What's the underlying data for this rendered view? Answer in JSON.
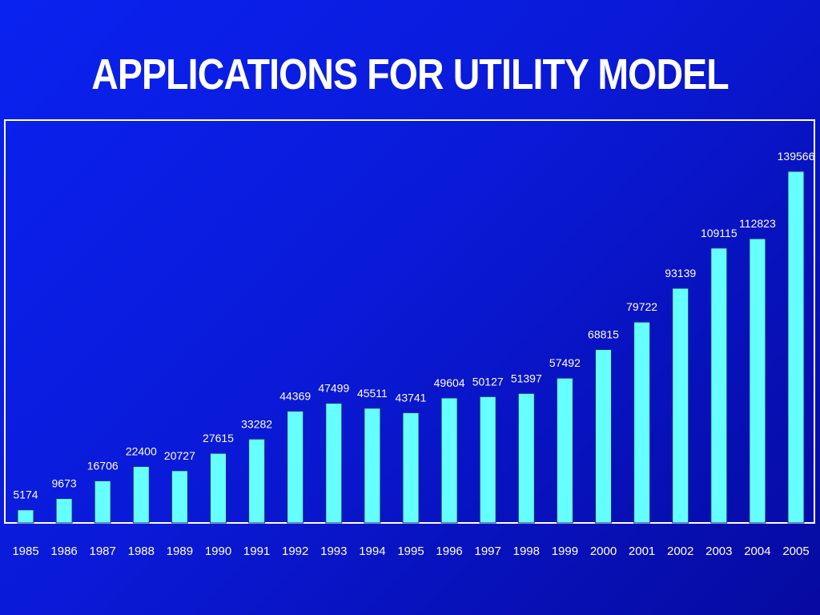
{
  "title": "APPLICATIONS FOR UTILITY MODEL",
  "colors": {
    "background": "#0a1ad8",
    "bar": "#66ffff",
    "frame": "#ffffff",
    "text": "#ffffff"
  },
  "chart_data": {
    "type": "bar",
    "title": "APPLICATIONS FOR UTILITY MODEL",
    "xlabel": "",
    "ylabel": "",
    "ylim": [
      0,
      139566
    ],
    "grid": false,
    "legend": "none",
    "categories": [
      "1985",
      "1986",
      "1987",
      "1988",
      "1989",
      "1990",
      "1991",
      "1992",
      "1993",
      "1994",
      "1995",
      "1996",
      "1997",
      "1998",
      "1999",
      "2000",
      "2001",
      "2002",
      "2003",
      "2004",
      "2005"
    ],
    "values": [
      5174,
      9673,
      16706,
      22400,
      20727,
      27615,
      33282,
      44369,
      47499,
      45511,
      43741,
      49604,
      50127,
      51397,
      57492,
      68815,
      79722,
      93139,
      109115,
      112823,
      139566
    ],
    "value_labels": [
      "5174",
      "9673",
      "16706",
      "22400",
      "20727",
      "27615",
      "33282",
      "44369",
      "47499",
      "45511",
      "43741",
      "49604",
      "50127",
      "51397",
      "57492",
      "68815",
      "79722",
      "93139",
      "109115",
      "112823",
      "139566"
    ]
  }
}
